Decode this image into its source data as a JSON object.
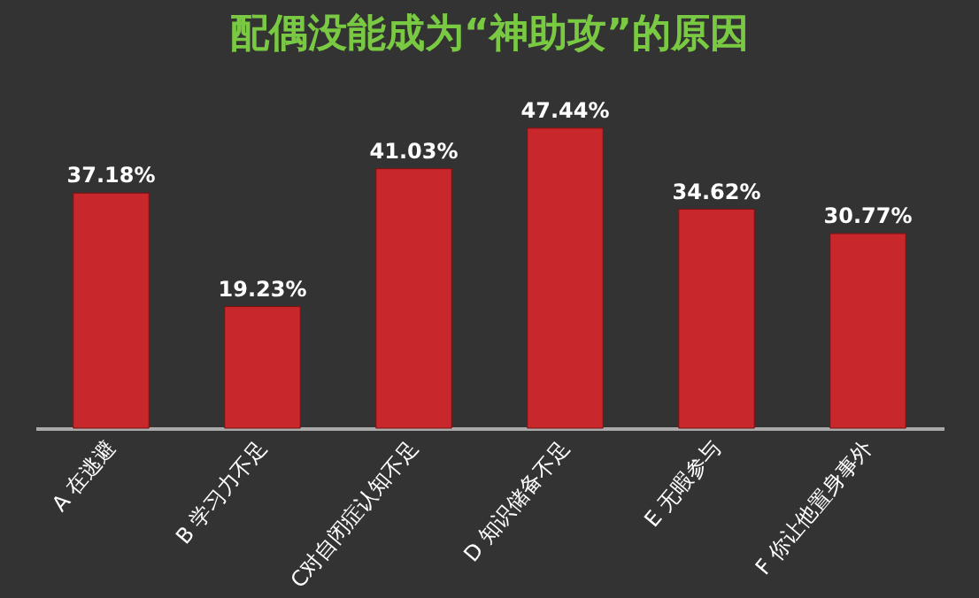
{
  "chart_data": {
    "type": "bar",
    "title": "配偶没能成为“神助攻”的原因",
    "categories": [
      "A 在逃避",
      "B 学习力不足",
      "C对自闭症认知不足",
      "D 知识储备不足",
      "E 无暇参与",
      "F 你让他置身事外"
    ],
    "values": [
      37.18,
      19.23,
      41.03,
      47.44,
      34.62,
      30.77
    ],
    "value_labels": [
      "37.18%",
      "19.23%",
      "41.03%",
      "47.44%",
      "34.62%",
      "30.77%"
    ],
    "color": "#c8282c"
  }
}
